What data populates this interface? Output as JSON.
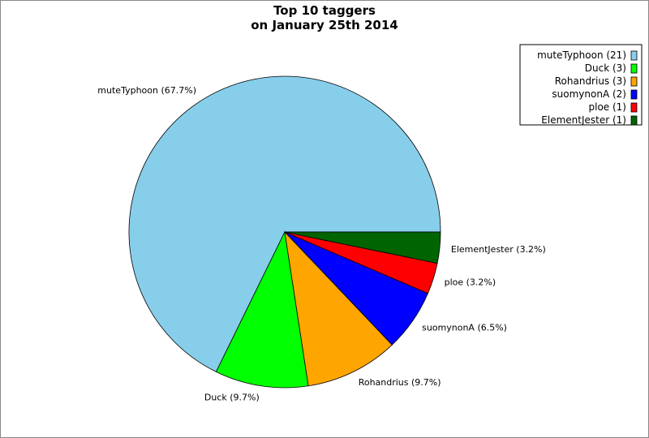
{
  "chart_data": {
    "type": "pie",
    "title_lines": [
      "Top 10 taggers",
      "on January 25th 2014"
    ],
    "slices": [
      {
        "name": "muteTyphoon",
        "value": 21,
        "percent_label": "muteTyphoon (67.7%)",
        "legend_label": "muteTyphoon (21)",
        "color": "#87ceeb"
      },
      {
        "name": "Duck",
        "value": 3,
        "percent_label": "Duck (9.7%)",
        "legend_label": "Duck (3)",
        "color": "#00ff00"
      },
      {
        "name": "Rohandrius",
        "value": 3,
        "percent_label": "Rohandrius (9.7%)",
        "legend_label": "Rohandrius (3)",
        "color": "#ffa500"
      },
      {
        "name": "suomynonA",
        "value": 2,
        "percent_label": "suomynonA (6.5%)",
        "legend_label": "suomynonA (2)",
        "color": "#0000ff"
      },
      {
        "name": "ploe",
        "value": 1,
        "percent_label": "ploe (3.2%)",
        "legend_label": "ploe (1)",
        "color": "#ff0000"
      },
      {
        "name": "ElementJester",
        "value": 1,
        "percent_label": "ElementJester (3.2%)",
        "legend_label": "ElementJester (1)",
        "color": "#006400"
      }
    ],
    "legend_position": "top-right"
  }
}
